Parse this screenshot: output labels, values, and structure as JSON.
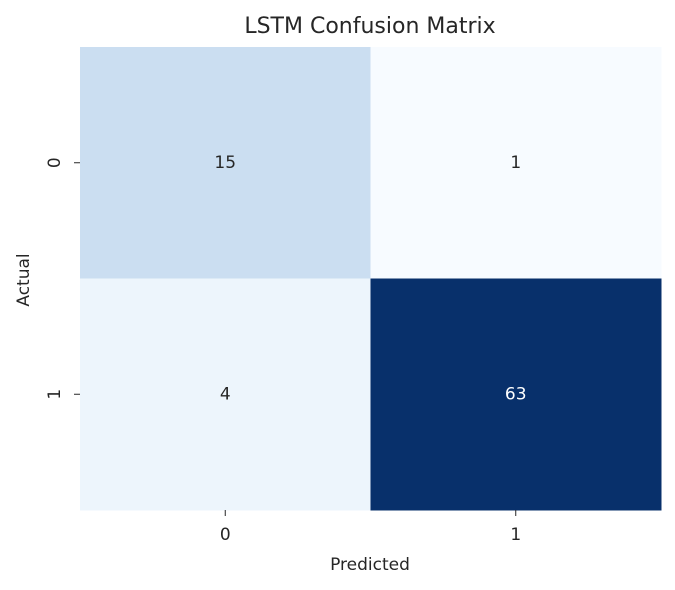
{
  "chart_data": {
    "type": "heatmap",
    "title": "LSTM Confusion Matrix",
    "xlabel": "Predicted",
    "ylabel": "Actual",
    "x_categories": [
      "0",
      "1"
    ],
    "y_categories": [
      "0",
      "1"
    ],
    "values": [
      [
        15,
        1
      ],
      [
        4,
        63
      ]
    ],
    "colormap": "Blues",
    "colorbar": false
  }
}
